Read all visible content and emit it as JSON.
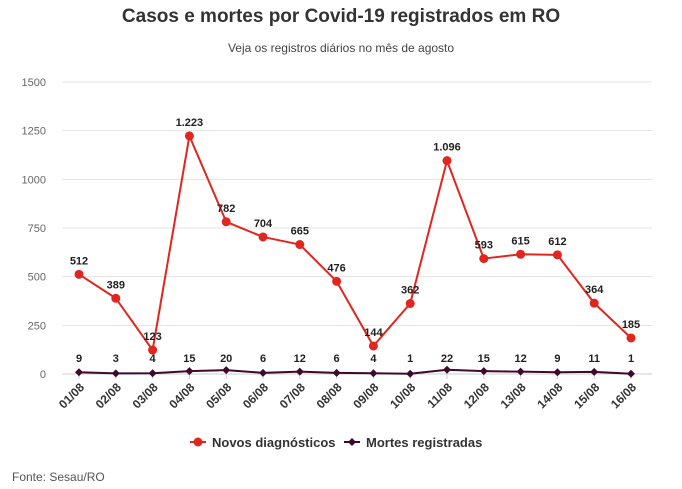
{
  "chart_data": {
    "type": "line",
    "title": "Casos e mortes por Covid-19 registrados em RO",
    "subtitle": "Veja os registros diários no mês de agosto",
    "categories": [
      "01/08",
      "02/08",
      "03/08",
      "04/08",
      "05/08",
      "06/08",
      "07/08",
      "08/08",
      "09/08",
      "10/08",
      "11/08",
      "12/08",
      "13/08",
      "14/08",
      "15/08",
      "16/08"
    ],
    "series": [
      {
        "name": "Novos diagnósticos",
        "color": "#e0261f",
        "values": [
          512,
          389,
          123,
          1223,
          782,
          704,
          665,
          476,
          144,
          362,
          1096,
          593,
          615,
          612,
          364,
          185
        ],
        "labels": [
          "512",
          "389",
          "123",
          "1.223",
          "782",
          "704",
          "665",
          "476",
          "144",
          "362",
          "1.096",
          "593",
          "615",
          "612",
          "364",
          "185"
        ]
      },
      {
        "name": "Mortes registradas",
        "color": "#3d0a2e",
        "values": [
          9,
          3,
          4,
          15,
          20,
          6,
          12,
          6,
          4,
          1,
          22,
          15,
          12,
          9,
          11,
          1
        ],
        "labels": [
          "9",
          "3",
          "4",
          "15",
          "20",
          "6",
          "12",
          "6",
          "4",
          "1",
          "22",
          "15",
          "12",
          "9",
          "11",
          "1"
        ]
      }
    ],
    "ylim": [
      0,
      1500
    ],
    "yticks": [
      0,
      250,
      500,
      750,
      1000,
      1250,
      1500
    ],
    "ytick_labels": [
      "0",
      "250",
      "500",
      "750",
      "1000",
      "1250",
      "1500"
    ],
    "grid": true,
    "legend_position": "bottom-center",
    "source": "Fonte: Sesau/RO"
  }
}
